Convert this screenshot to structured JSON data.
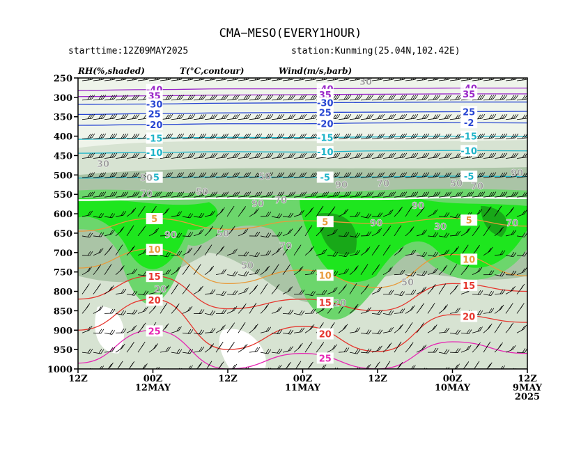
{
  "header": {
    "title": "CMA−MESO(EVERY1HOUR)",
    "starttime": "starttime:12Z09MAY2025",
    "station": "station:Kunming(25.04N,102.42E)"
  },
  "legend": {
    "rh": "RH(%,shaded)",
    "temp": "T(°C,contour)",
    "wind": "Wind(m/s,barb)"
  },
  "colors": {
    "rh_30": "#eef4ea",
    "rh_50": "#d7e3d2",
    "rh_70": "#aac4a6",
    "rh_80": "#6cd66c",
    "rh_90": "#1ee61e",
    "rh_95": "#18a818",
    "temp_warm": "#e6362e",
    "temp_mid": "#e89a3a",
    "temp_cold_cyan": "#1eb4c8",
    "temp_cold_blue": "#2846d2",
    "temp_coldest": "#9a28c8",
    "temp_very_warm": "#e628b4"
  },
  "chart_data": {
    "type": "time-height cross section",
    "y_axis": {
      "label": "",
      "ticks": [
        250,
        300,
        350,
        400,
        450,
        500,
        550,
        600,
        650,
        700,
        750,
        800,
        850,
        900,
        950,
        1000
      ],
      "range": [
        250,
        1000
      ],
      "inverted": true
    },
    "x_axis": {
      "ticks": [
        {
          "line1": "12Z",
          "line2": "",
          "line3": ""
        },
        {
          "line1": "00Z",
          "line2": "12MAY",
          "line3": ""
        },
        {
          "line1": "12Z",
          "line2": "",
          "line3": ""
        },
        {
          "line1": "00Z",
          "line2": "11MAY",
          "line3": ""
        },
        {
          "line1": "12Z",
          "line2": "",
          "line3": ""
        },
        {
          "line1": "00Z",
          "line2": "10MAY",
          "line3": ""
        },
        {
          "line1": "12Z",
          "line2": "9MAY",
          "line3": "2025"
        }
      ],
      "direction": "time decreases to the right"
    },
    "temperature_contours": [
      {
        "value": -40,
        "levels_by_tick": [
          282,
          280,
          278,
          278,
          277,
          276,
          276
        ],
        "labels": [
          "-40",
          "-40",
          "-40"
        ]
      },
      {
        "value": -35,
        "levels_by_tick": [
          298,
          296,
          294,
          293,
          292,
          291,
          291
        ],
        "labels": [
          "35",
          "35",
          "35"
        ]
      },
      {
        "value": -30,
        "levels_by_tick": [
          318,
          317,
          315,
          314,
          313,
          312,
          312
        ],
        "labels": [
          "-30",
          "-30"
        ]
      },
      {
        "value": -25,
        "levels_by_tick": [
          344,
          342,
          340,
          339,
          338,
          337,
          336
        ],
        "labels": [
          "25",
          "25",
          "25"
        ]
      },
      {
        "value": -20,
        "levels_by_tick": [
          372,
          370,
          368,
          368,
          366,
          365,
          366
        ],
        "labels": [
          "-20",
          "-20",
          "-2"
        ]
      },
      {
        "value": -15,
        "levels_by_tick": [
          408,
          405,
          403,
          404,
          402,
          400,
          401
        ],
        "labels": [
          "-15",
          "-15",
          "-15"
        ]
      },
      {
        "value": -10,
        "levels_by_tick": [
          444,
          442,
          440,
          441,
          438,
          437,
          438
        ],
        "labels": [
          "-10",
          "-10",
          "-10"
        ]
      },
      {
        "value": -5,
        "levels_by_tick": [
          508,
          506,
          505,
          506,
          505,
          503,
          504
        ],
        "labels": [
          "-5",
          "-5",
          "-5"
        ]
      },
      {
        "value": 0,
        "levels_by_tick": [
          565,
          562,
          560,
          562,
          562,
          558,
          560
        ],
        "labels": []
      },
      {
        "value": 5,
        "levels_by_tick": [
          645,
          612,
          640,
          618,
          625,
          612,
          632
        ],
        "labels": [
          "5",
          "5",
          "5"
        ]
      },
      {
        "value": 10,
        "levels_by_tick": [
          740,
          690,
          780,
          745,
          790,
          705,
          760
        ],
        "labels": [
          "10",
          "10",
          "10"
        ]
      },
      {
        "value": 15,
        "levels_by_tick": [
          820,
          760,
          845,
          820,
          850,
          780,
          800
        ],
        "labels": [
          "15",
          "15",
          "15"
        ]
      },
      {
        "value": 20,
        "levels_by_tick": [
          900,
          820,
          950,
          890,
          955,
          860,
          880
        ],
        "labels": [
          "20",
          "20",
          "20"
        ]
      },
      {
        "value": 25,
        "levels_by_tick": [
          985,
          900,
          1000,
          960,
          1000,
          930,
          960
        ],
        "labels": [
          "25",
          "25"
        ]
      }
    ],
    "rh_labels": [
      "30",
      "50",
      "70",
      "90",
      "50",
      "70",
      "90",
      "50",
      "90",
      "70",
      "70",
      "90",
      "50",
      "70",
      "20",
      "90",
      "50",
      "30",
      "20",
      "90",
      "30",
      "70",
      "50",
      "50"
    ]
  }
}
